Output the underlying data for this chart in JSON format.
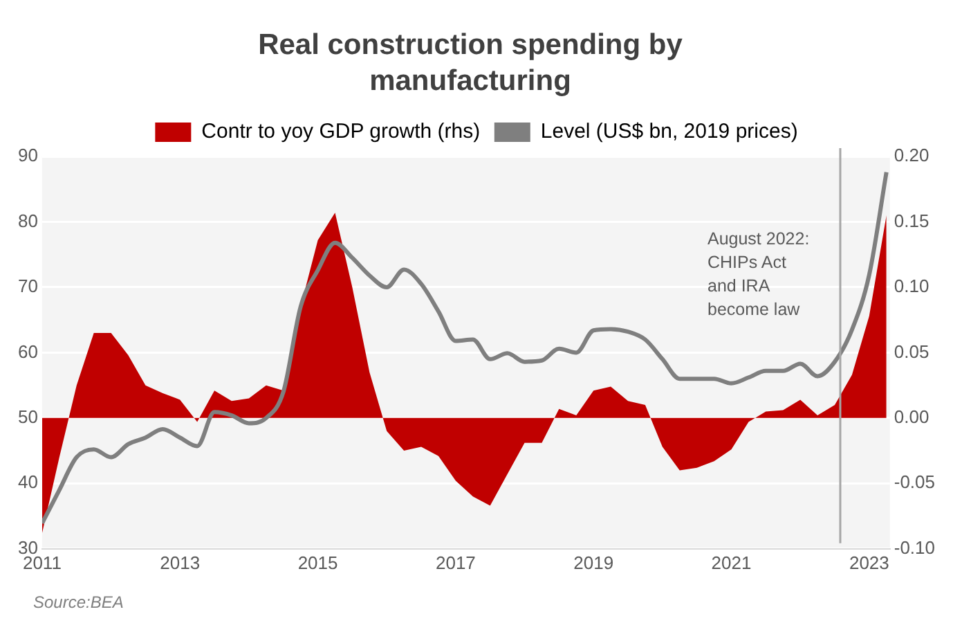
{
  "chart_data": {
    "type": "area",
    "title": "Real construction spending by manufacturing",
    "x": [
      2011,
      2011.25,
      2011.5,
      2011.75,
      2012,
      2012.25,
      2012.5,
      2012.75,
      2013,
      2013.25,
      2013.5,
      2013.75,
      2014,
      2014.25,
      2014.5,
      2014.75,
      2015,
      2015.25,
      2015.5,
      2015.75,
      2016,
      2016.25,
      2016.5,
      2016.75,
      2017,
      2017.25,
      2017.5,
      2017.75,
      2018,
      2018.25,
      2018.5,
      2018.75,
      2019,
      2019.25,
      2019.5,
      2019.75,
      2020,
      2020.25,
      2020.5,
      2020.75,
      2021,
      2021.25,
      2021.5,
      2021.75,
      2022,
      2022.25,
      2022.5,
      2022.75,
      2023,
      2023.25
    ],
    "series": [
      {
        "name": "Contr to yoy GDP growth (rhs)",
        "type": "area",
        "axis": "y2",
        "color": "#c00000",
        "values": [
          -0.088,
          -0.03,
          0.025,
          0.065,
          0.065,
          0.048,
          0.025,
          0.019,
          0.014,
          -0.003,
          0.021,
          0.013,
          0.015,
          0.025,
          0.021,
          0.085,
          0.136,
          0.157,
          0.1,
          0.035,
          -0.01,
          -0.025,
          -0.022,
          -0.029,
          -0.048,
          -0.06,
          -0.067,
          -0.043,
          -0.019,
          -0.019,
          0.007,
          0.002,
          0.021,
          0.024,
          0.013,
          0.01,
          -0.022,
          -0.04,
          -0.038,
          -0.033,
          -0.024,
          -0.003,
          0.005,
          0.006,
          0.014,
          0.002,
          0.01,
          0.033,
          0.078,
          0.155
        ]
      },
      {
        "name": "Level (US$ bn, 2019 prices)",
        "type": "line",
        "color": "#7f7f7f",
        "values": [
          33.9,
          39,
          44,
          45.2,
          44,
          46,
          47,
          48.3,
          47,
          45.7,
          50.9,
          50.4,
          49.2,
          50,
          54,
          67,
          72.6,
          76.8,
          74.5,
          71.8,
          70,
          72.7,
          70.5,
          66.3,
          61.8,
          62,
          59,
          59.9,
          58.6,
          58.8,
          60.6,
          60,
          63.4,
          63.6,
          63.2,
          62,
          59,
          56,
          56,
          56,
          55.3,
          56.2,
          57.2,
          57.2,
          58.3,
          56.4,
          58.6,
          63.5,
          71.9,
          87.6
        ]
      }
    ],
    "xlim": [
      2011,
      2023.3
    ],
    "xticks": [
      2011,
      2013,
      2015,
      2017,
      2019,
      2021,
      2023
    ],
    "ylim": [
      30,
      90
    ],
    "yticks": [
      30,
      40,
      50,
      60,
      70,
      80,
      90
    ],
    "y2lim": [
      -0.1,
      0.2
    ],
    "y2ticks": [
      {
        "value": -0.1,
        "label": "-0.10"
      },
      {
        "value": -0.05,
        "label": "-0.05"
      },
      {
        "value": 0,
        "label": "0.00"
      },
      {
        "value": 0.05,
        "label": "0.05"
      },
      {
        "value": 0.1,
        "label": "0.10"
      },
      {
        "value": 0.15,
        "label": "0.15"
      },
      {
        "value": 0.2,
        "label": "0.20"
      }
    ],
    "ref_lines": [
      {
        "axis": "x",
        "value": 2022.58,
        "label": "August 2022:\nCHIPs Act\nand IRA\nbecome law",
        "color": "#a6a6a6"
      }
    ],
    "annotations": [
      "Source:BEA"
    ],
    "grid": "y",
    "legend": "top",
    "marker": "none",
    "line_style": "solid"
  }
}
